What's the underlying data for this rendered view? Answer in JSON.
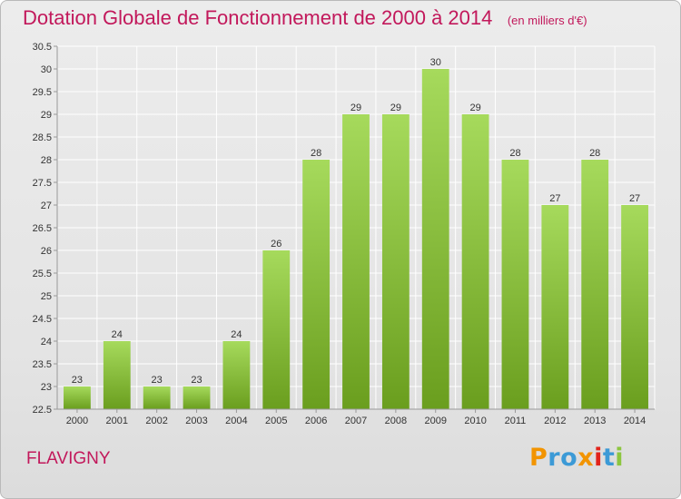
{
  "header": {
    "title": "Dotation Globale de Fonctionnement de 2000 à 2014",
    "subtitle": "(en milliers d'€)"
  },
  "footer": {
    "commune": "FLAVIGNY",
    "logo_text": "Proxiti",
    "logo_colors": [
      "#f29400",
      "#3c9ad6",
      "#3c9ad6",
      "#f29400",
      "#e2231a",
      "#3c9ad6",
      "#8cc63f"
    ]
  },
  "colors": {
    "title": "#c2185b",
    "bar_light": "#a6da5c",
    "bar_dark": "#6a9e1e",
    "grid": "#ffffff",
    "axis": "#999999"
  },
  "chart_data": {
    "type": "bar",
    "title": "Dotation Globale de Fonctionnement de 2000 à 2014",
    "subtitle": "(en milliers d'€)",
    "xlabel": "",
    "ylabel": "",
    "categories": [
      "2000",
      "2001",
      "2002",
      "2003",
      "2004",
      "2005",
      "2006",
      "2007",
      "2008",
      "2009",
      "2010",
      "2011",
      "2012",
      "2013",
      "2014"
    ],
    "values": [
      23,
      24,
      23,
      23,
      24,
      26,
      28,
      29,
      29,
      30,
      29,
      28,
      27,
      28,
      27
    ],
    "data_labels": [
      "23",
      "24",
      "23",
      "23",
      "24",
      "26",
      "28",
      "29",
      "29",
      "30",
      "29",
      "28",
      "27",
      "28",
      "27"
    ],
    "ylim": [
      22.5,
      30.5
    ],
    "yticks": [
      22.5,
      23,
      23.5,
      24,
      24.5,
      25,
      25.5,
      26,
      26.5,
      27,
      27.5,
      28,
      28.5,
      29,
      29.5,
      30,
      30.5
    ],
    "ytick_labels": [
      "22.5",
      "23",
      "23.5",
      "24",
      "24.5",
      "25",
      "25.5",
      "26",
      "26.5",
      "27",
      "27.5",
      "28",
      "28.5",
      "29",
      "29.5",
      "30",
      "30.5"
    ],
    "grid": true,
    "legend": "none"
  }
}
